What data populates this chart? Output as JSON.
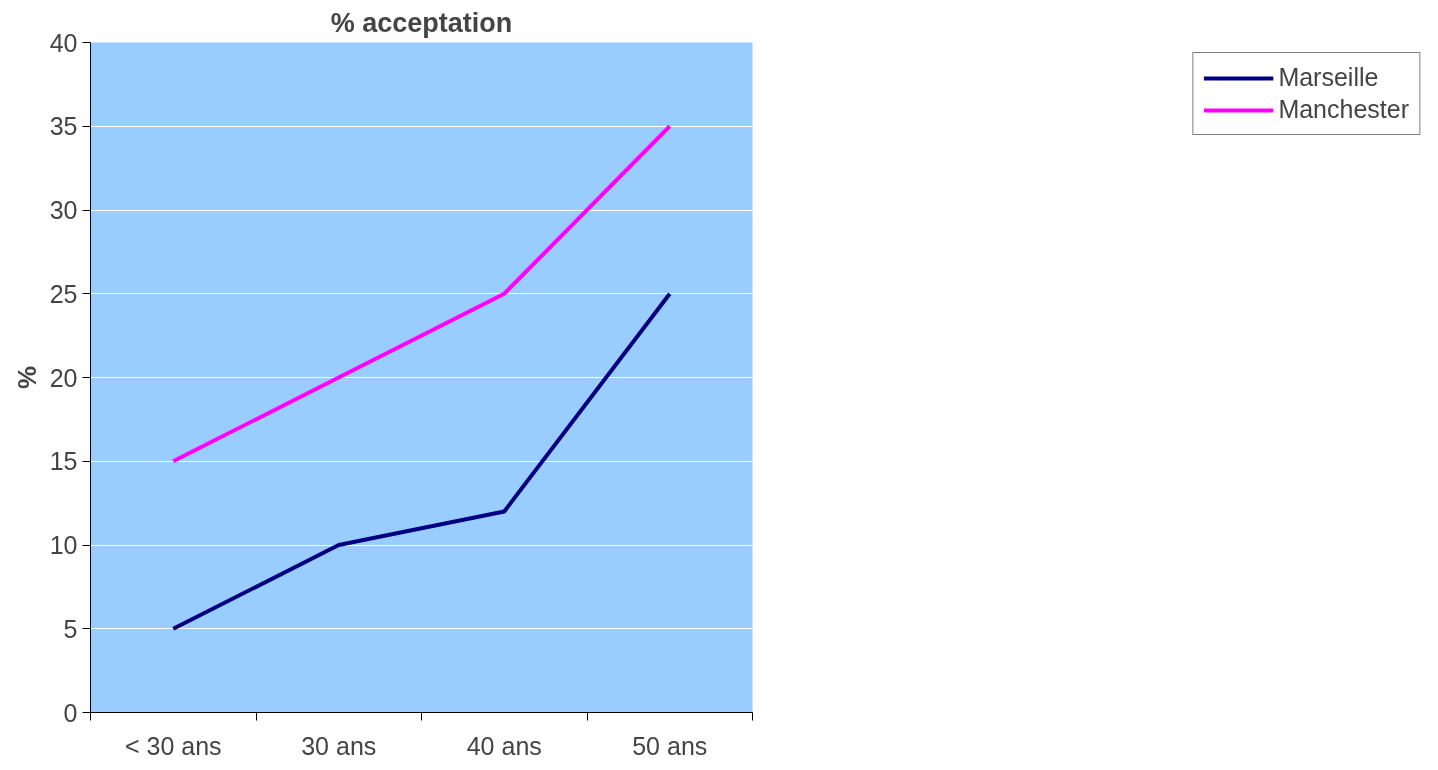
{
  "chart_data": {
    "type": "line",
    "title": "% acceptation",
    "ylabel": "%",
    "categories": [
      "< 30 ans",
      "30 ans",
      "40 ans",
      "50 ans"
    ],
    "series": [
      {
        "name": "Marseille",
        "color": "#000080",
        "values": [
          5,
          10,
          12,
          25
        ]
      },
      {
        "name": "Manchester",
        "color": "#ff00ff",
        "values": [
          15,
          20,
          25,
          35
        ]
      }
    ],
    "ylim": [
      0,
      40
    ],
    "yticks": [
      0,
      5,
      10,
      15,
      20,
      25,
      30,
      35,
      40
    ],
    "grid": "y",
    "legend": "right"
  }
}
